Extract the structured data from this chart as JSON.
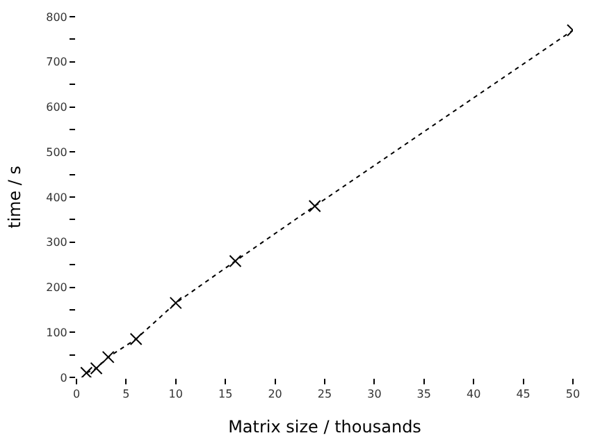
{
  "chart_data": {
    "type": "line",
    "xlabel": "Matrix size / thousands",
    "ylabel": "time / s",
    "x": [
      1,
      2,
      3.2,
      6,
      10,
      16,
      24,
      50
    ],
    "series": [
      {
        "color": "#000000",
        "values": [
          10,
          20,
          45,
          85,
          165,
          258,
          380,
          770
        ]
      }
    ],
    "marker": "cross",
    "line_style": "dotted",
    "xlim": [
      0,
      50
    ],
    "xticks": [
      0,
      5,
      10,
      15,
      20,
      25,
      30,
      35,
      40,
      45,
      50
    ],
    "ylim": [
      0,
      800
    ],
    "yticks": [
      0,
      {
        "value": 50,
        "label": null
      },
      100,
      {
        "value": 150,
        "label": null
      },
      200,
      {
        "value": 250,
        "label": null
      },
      300,
      {
        "value": 350,
        "label": null
      },
      400,
      {
        "value": 450,
        "label": null
      },
      500,
      {
        "value": 550,
        "label": null
      },
      600,
      {
        "value": 650,
        "label": null
      },
      700,
      {
        "value": 750,
        "label": null
      },
      800
    ]
  }
}
